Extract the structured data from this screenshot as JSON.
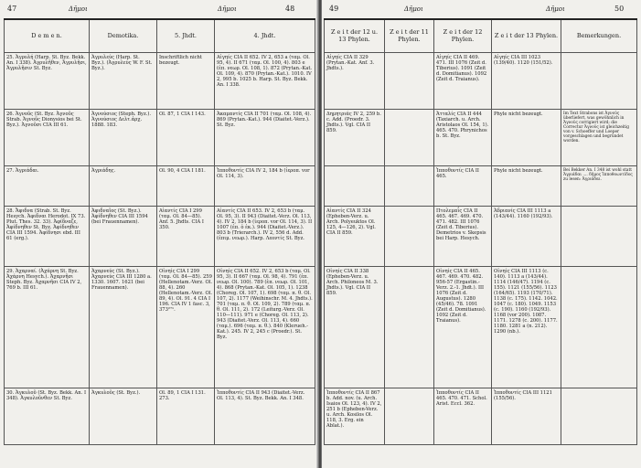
{
  "left": {
    "page_left": "47",
    "page_right": "48",
    "running_title": "Δῆμοι",
    "headers": [
      "D e m e n.",
      "Demotika.",
      "5. Jhdt.",
      "4. Jhdt."
    ],
    "rows": [
      [
        "25. Ἀγρυλή (Harp. St. Byz. Bekk. An. I 338). Ἀγρυλῆθεν, Ἀγρυλῆσι, Ἀγρυλῆσιν St. Byz.",
        "Ἀγρυλεύς (Harp. St. Byz.). (Ἀγρυλεύς W. F. St. Byz.).",
        "Inschriftlich nicht bezeugt.",
        "Αἰγηίς CIA II 652. IV 2, 653 a (ταμ. Ol. 95, 4). II 671 (ταμ. Ol. 100, 4). 803 e (ἐπ. νεωρ. Ol. 108, 1). 872 (Prytan.-Kat. Ol. 109, 4). 870 (Prytan.-Kat.). 1010. IV 2, 995 b. 1025 b. Harp. St. Byz. Bekk. An. I 338."
      ],
      [
        "26. Ἀγνοῦς (St. Byz. Ἀγνοῦς Strab. Ἀγνοῦς Dionysios bei St. Byz.). Ἀγνοῦσι CIA III 61.",
        "Ἀγνούσιος (Steph. Byz.). Ἀγνούσιος Δελτ.ἀρχ. 1888. 183.",
        "Ol. 87, 1 CIA I 143.",
        "Ἀκαμαντίς CIA II 701 (ταμ. Ol. 108, 4). 869 (Prytan.-Kat.). 944 (Diaitet.-Verz.). St. Byz."
      ],
      [
        "27. Ἀγριάδαι.",
        "Ἀγριάδης.",
        "Ol. 90, 4 CIA I 181.",
        "Ἱπποθοντίς CIA IV 2, 184 b (ἱεροπ. vor Ol. 114, 3)."
      ],
      [
        "28. Ἄφιδνα (Strab. St. Byz. Hesych. Ἀφιδναι Herodot. IX 73. Plut. Thes. 32. 33). Ἀφίδναζε, Ἀφίδνηθεν St. Byz. Ἀφίδνηθεν CIA III 1594. Ἀφίδνησι ebd. III 61 (erg.).",
        "Ἀφιδναῖος (St. Byz.). Ἀφίδνηθεν CIA III 1594 (bei Frauennamen).",
        "Αἰαντίς CIA I 299 (ταμ. Ol. 84—85). Anf. 5. Jhdts. CIA I 350.",
        "Αἰαντίς CIA II 653. IV 2, 653 b (ταμ. Ol. 95, 3). II 943 (Diaitet.-Verz. Ol. 113, 4). IV 2, 184 b (ἱεροπ. vor Ol. 114, 3). II 1007 (ἐπ. ὁ ἐκ.). 944 (Diaitet.-Verz.). 803 b (Trierarch.). IV 2, 556 d. Add. (ἐπιμ. νεωρ.). Harp. Λεοντίς St. Byz."
      ],
      [
        "29. Ἀχαρναί. (Ἀχάρνη St. Byz. Ἀχάρνη Hesych.). Ἀχαρνῆσι Steph. Byz. Ἀχαρνῆσι CIA IV 2, 769 b. III 61.",
        "Ἀχαρνεύς (St. Byz.). Ἀχαρνεύς CIA III 1280 a. 1330. 1607. 1621 (bei Frauennamen).",
        "Οἰνηίς CIA I 299 (ταμ. Ol. 84—85). 259 (Hellenotam.-Verz. Ol. 88, 4). 260 (Hellenotam.-Verz. Ol. 89, 4). Ol. 91. 4 CIA I 196. CIA IV 1 fasc. 3, 373²⁷¹.",
        "Οἰνηίς CIA II 652. IV 2, 653 b (ταμ. Ol. 95, 3). II 667 (ταμ. Ol. 98, 4). 791 (ἐπ. νεωρ. Ol. 100). 789 (ἐπ. νεωρ. Ol. 101, 4). 868 (Prytan.-Kat. Ol. 105, 1). 1238 (Choreg. Ol. 107, 1). 698 (ταμ. π. θ. Ol. 107, 2). 1177 (Weihinschr. M. 4. Jhdts.). 701 (ταμ. π. θ. Ol. 109, 2). 789 (ταμ. π. θ. Ol. 111, 2). 172 (Leiturg.-Verz. Ol. 110—111). 971 e (Choreg. Ol. 113, 2). 943 (Diaitet.-Verz. Ol. 113, 4). 660 (ταμ.). 696 (ταμ. π. θ.). 840 (Klerueh.-Kat.). 245. IV 2, 245 c (Proedr.). St. Byz."
      ],
      [
        "30. Ἀγκυλοῦ (St. Byz. Bekk. An. I 348). Ἀγκυλοῦνθεν St. Byz.",
        "Ἀγκυλοῦς (St. Byz.).",
        "Ol. 89, 1 CIA I 131. 273.",
        "Ἱπποθοντίς CIA II 943 (Diaitet.-Verz. Ol. 113, 4). St. Byz. Bekk. An. I 348."
      ]
    ]
  },
  "right": {
    "page_left": "49",
    "page_right": "50",
    "running_title": "Δῆμοι",
    "headers": [
      "Z e i t der 12 u. 13 Phylen.",
      "Z e i t der 11 Phylen.",
      "Z e i t der 12 Phylen.",
      "Z e i t der 13 Phylen.",
      "Bemerkungen."
    ],
    "rows": [
      [
        "Αἰγηίς CIA II 329 (Prytan.-Kat. Anf. 3. Jhdts.).",
        "",
        "Αἰγηίς CIA II 469. 471. III 1076 (Zeit d. Tiberius). 1091 (Zeit d. Domitianus). 1092 (Zeit d. Traianus).",
        "Αἰγηίς CIA III 1023 (139/40). 1120 (151/52).",
        ""
      ],
      [
        "Δημητριάς IV 2, 259 b. c. Add. (Proedr. 3. Jhdts.). Vgl. CIA II 859.",
        "",
        "Ἀτταλίς CIA II 444 (Taxiarch. u. Arch. Aristolaos Ol. 154, 1). 465. 470. Phrynichos b. St. Byz.",
        "Phyle nicht bezeugt.",
        "Im Text Strabons ist Ἀγνοῦς überliefert, was gewöhnlich in Ἀγνοῦς corrigiert wird; die Correctur Ἀγνοῦς ist gleichzeitig von v. Schoeffer und Loeper vorgeschlagen und begründet worden."
      ],
      [
        "",
        "",
        "Ἱπποθοντίς CIA II 465.",
        "Phyle nicht bezeugt.",
        "Bei Bekker An. I 348 ist wohl statt Ἀγριάδαι .... δῆμος Ἱπποθοωντίδος zu lesen: Ἀγριάδαι."
      ],
      [
        "Αἰαντίς CIA II 324 (Epheben-Verz. u. Arch. Polyeuktos Ol. 125, 4—126, 2). Vgl. CIA II 859.",
        "",
        "Πτολεμαΐς CIA II 465. 467. 469. 470. 471. 482. III 1076 (Zeit d. Tiberius). Demetrios v. Skepsis bei Harp. Hesych.",
        "Ἀδριανίς CIA III 1113 a (143/44). 1160 (192/93).",
        ""
      ],
      [
        "Οἰνηίς CIA II 338 (Epheben-Verz. u. Arch. Philoneos M. 3. Jhdts.). Vgl. CIA II 859.",
        "",
        "Οἰνηίς CIA II 465. 467. 469. 470. 482. 956-57 (Ergastin.-Verz. 2.-1. Jhdt.). III 1076 (Zeit d. Augustus). 1280 (45/46). 78. 1091 (Zeit d. Domitianus). 1092 (Zeit d. Traianus).",
        "Οἰνηίς CIA III 1113 (c. 140). 1113 a (143/44). 1114 (146/47). 1194 (c. 155). 1121 (155/56). 1123 (164/65). 1193 (170/71). 1138 (c. 175). 1142. 1042. 1047 (c. 180). 1049. 1153 (c. 190). 1160 (192/93). 1168 (vor 200). 1087. 1171. 1278 (c. 200). 1177. 1180. 1281 a (n. 212). 1290 (nb.).",
        ""
      ],
      [
        "Ἱπποθοντίς CIA II 867 b. Add. nov. (u. Arch. Isaios Ol. 123, 4). IV 2, 251 b (Epheben-Verz. u. Arch. Kosilos Ol. 118, 3. Erg. ein Ablat.).",
        "",
        "Ἱπποθοντίς CIA II 465. 470. 471. Schol. Arist. Eccl. 362.",
        "Ἱπποθοντίς CIA III 1121 (155/56).",
        ""
      ]
    ]
  }
}
